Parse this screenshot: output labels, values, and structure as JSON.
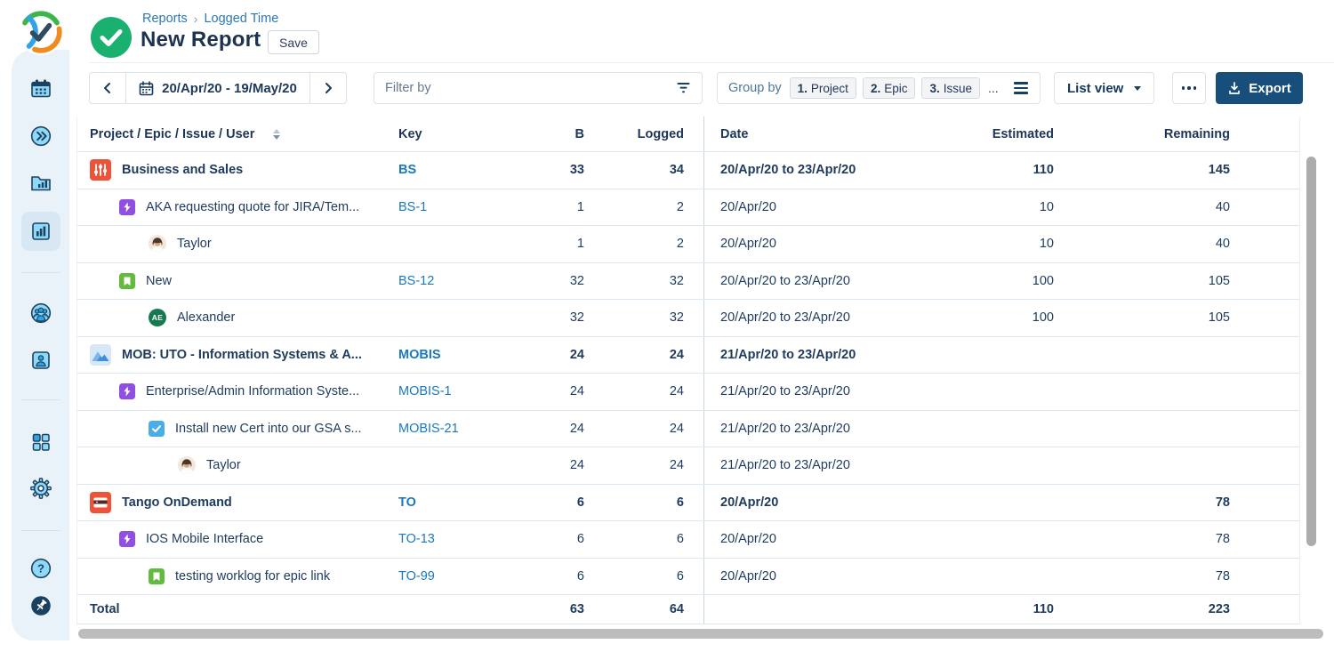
{
  "header": {
    "breadcrumb": [
      "Reports",
      "Logged Time"
    ],
    "title": "New Report",
    "save_label": "Save"
  },
  "icons": {
    "breadcrumb_separator": "›"
  },
  "toolbar": {
    "date_range": "20/Apr/20 - 19/May/20",
    "filter_placeholder": "Filter by",
    "group_by_label": "Group by",
    "group_chips": [
      {
        "index": "1.",
        "label": "Project"
      },
      {
        "index": "2.",
        "label": "Epic"
      },
      {
        "index": "3.",
        "label": "Issue"
      }
    ],
    "group_more": "...",
    "view_selector": "List view",
    "export_label": "Export"
  },
  "table": {
    "columns": {
      "hierarchy": "Project / Epic / Issue / User",
      "key": "Key",
      "b": "B",
      "logged": "Logged",
      "date": "Date",
      "estimated": "Estimated",
      "remaining": "Remaining"
    },
    "rows": [
      {
        "level": 0,
        "icon": "project-business",
        "name": "Business and Sales",
        "key": "BS",
        "b": "33",
        "logged": "34",
        "date": "20/Apr/20 to 23/Apr/20",
        "estimated": "110",
        "remaining": "145",
        "bold": true
      },
      {
        "level": 1,
        "icon": "epic",
        "name": "AKA requesting quote for JIRA/Tem...",
        "key": "BS-1",
        "b": "1",
        "logged": "2",
        "date": "20/Apr/20",
        "estimated": "10",
        "remaining": "40"
      },
      {
        "level": 2,
        "icon": "avatar-taylor",
        "name": "Taylor",
        "key": "",
        "b": "1",
        "logged": "2",
        "date": "20/Apr/20",
        "estimated": "10",
        "remaining": "40"
      },
      {
        "level": 1,
        "icon": "story",
        "name": "New",
        "key": "BS-12",
        "b": "32",
        "logged": "32",
        "date": "20/Apr/20 to 23/Apr/20",
        "estimated": "100",
        "remaining": "105"
      },
      {
        "level": 2,
        "icon": "avatar-initials",
        "initials": "AE",
        "name": "Alexander",
        "key": "",
        "b": "32",
        "logged": "32",
        "date": "20/Apr/20 to 23/Apr/20",
        "estimated": "100",
        "remaining": "105"
      },
      {
        "level": 0,
        "icon": "project-mobis",
        "name": "MOB: UTO - Information Systems & A...",
        "key": "MOBIS",
        "b": "24",
        "logged": "24",
        "date": "21/Apr/20 to 23/Apr/20",
        "estimated": "",
        "remaining": "",
        "bold": true
      },
      {
        "level": 1,
        "icon": "epic",
        "name": "Enterprise/Admin Information Syste...",
        "key": "MOBIS-1",
        "b": "24",
        "logged": "24",
        "date": "21/Apr/20 to 23/Apr/20",
        "estimated": "",
        "remaining": ""
      },
      {
        "level": 2,
        "icon": "task",
        "name": "Install new Cert into our GSA s...",
        "key": "MOBIS-21",
        "b": "24",
        "logged": "24",
        "date": "21/Apr/20 to 23/Apr/20",
        "estimated": "",
        "remaining": ""
      },
      {
        "level": 3,
        "icon": "avatar-taylor",
        "name": "Taylor",
        "key": "",
        "b": "24",
        "logged": "24",
        "date": "21/Apr/20 to 23/Apr/20",
        "estimated": "",
        "remaining": ""
      },
      {
        "level": 0,
        "icon": "project-tango",
        "name": "Tango OnDemand",
        "key": "TO",
        "b": "6",
        "logged": "6",
        "date": "20/Apr/20",
        "estimated": "",
        "remaining": "78",
        "bold": true
      },
      {
        "level": 1,
        "icon": "epic",
        "name": "IOS Mobile Interface",
        "key": "TO-13",
        "b": "6",
        "logged": "6",
        "date": "20/Apr/20",
        "estimated": "",
        "remaining": "78"
      },
      {
        "level": 2,
        "icon": "story",
        "name": "testing worklog for epic link",
        "key": "TO-99",
        "b": "6",
        "logged": "6",
        "date": "20/Apr/20",
        "estimated": "",
        "remaining": "78"
      }
    ],
    "total": {
      "label": "Total",
      "b": "63",
      "logged": "64",
      "estimated": "110",
      "remaining": "223"
    }
  },
  "sidebar": {
    "items": [
      "calendar",
      "timeline",
      "reports-folder",
      "charts",
      "team",
      "profile",
      "apps",
      "settings",
      "help",
      "pin"
    ],
    "active_item": "charts"
  },
  "colors": {
    "sidebar_bg": "#e9f1f9",
    "export_button": "#174e7c",
    "link_blue": "#1a78be",
    "breadcrumb_blue": "#2e77b5",
    "text_navy": "#1e3a5c",
    "row_border": "#d9e8f3",
    "title_check_green": "#1ab070",
    "epic_purple": "#904ee2",
    "story_green": "#63ba3c",
    "task_blue": "#4bade8",
    "project_orange": "#ed5338"
  }
}
